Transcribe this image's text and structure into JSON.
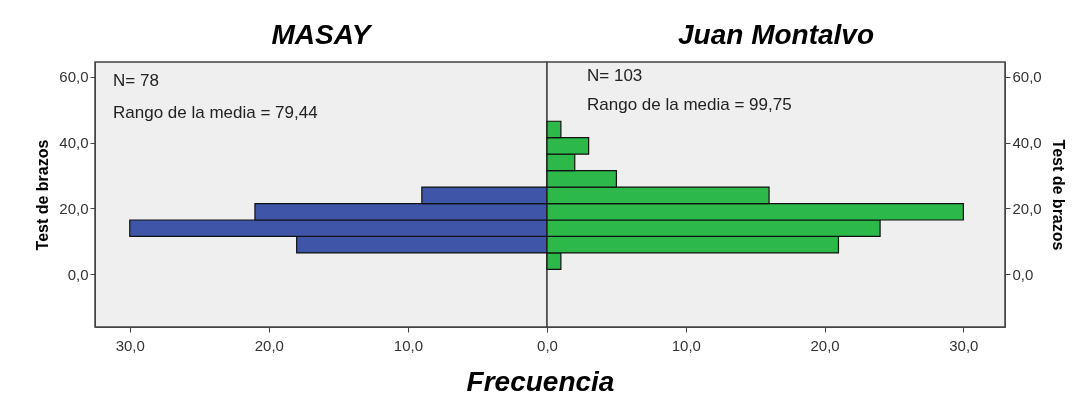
{
  "chart_data": [
    {
      "type": "histogram",
      "orientation": "horizontal",
      "title": "MASAY",
      "xlabel": "Frecuencia",
      "ylabel": "Test de brazos",
      "bins": [
        1.5,
        6.5,
        11.5,
        16.5,
        21.5,
        26.5,
        31.5,
        36.5,
        41.5,
        46.5
      ],
      "series": [
        {
          "color": "#3f56a8",
          "values": [
            0,
            18,
            30,
            21,
            9,
            0,
            0,
            0,
            0
          ]
        }
      ],
      "xlim": [
        32.5,
        0
      ],
      "xticks": [
        {
          "value": 30,
          "label": "30,0"
        },
        {
          "value": 20,
          "label": "20,0"
        },
        {
          "value": 10,
          "label": "10,0"
        },
        {
          "value": 0,
          "label": "0,0"
        }
      ],
      "ylim": [
        -16,
        64.5
      ],
      "yticks": [
        {
          "value": 0,
          "label": "0,0"
        },
        {
          "value": 20,
          "label": "20,0"
        },
        {
          "value": 40,
          "label": "40,0"
        },
        {
          "value": 60,
          "label": "60,0"
        }
      ],
      "annotations": [
        "N= 78",
        "Rango de la media = 79,44"
      ],
      "grid": false
    },
    {
      "type": "histogram",
      "orientation": "horizontal",
      "title": "Juan Montalvo",
      "ylabel": "Test de brazos",
      "bins": [
        1.5,
        6.5,
        11.5,
        16.5,
        21.5,
        26.5,
        31.5,
        36.5,
        41.5,
        46.5
      ],
      "series": [
        {
          "color": "#2db84a",
          "values": [
            1,
            21,
            24,
            30,
            16,
            5,
            2,
            3,
            1
          ]
        }
      ],
      "xlim": [
        0,
        33
      ],
      "xticks": [
        {
          "value": 0,
          "label": null
        },
        {
          "value": 10,
          "label": "10,0"
        },
        {
          "value": 20,
          "label": "20,0"
        },
        {
          "value": 30,
          "label": "30,0"
        }
      ],
      "ylim": [
        -16,
        64.5
      ],
      "yticks": [
        {
          "value": 0,
          "label": "0,0"
        },
        {
          "value": 20,
          "label": "20,0"
        },
        {
          "value": 40,
          "label": "40,0"
        },
        {
          "value": 60,
          "label": "60,0"
        }
      ],
      "annotations": [
        "N= 103",
        "Rango de la media = 99,75"
      ],
      "grid": false
    }
  ]
}
